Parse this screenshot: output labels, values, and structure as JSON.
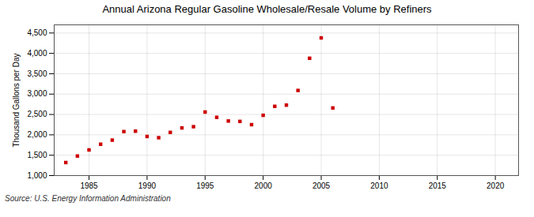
{
  "chart_data": {
    "type": "scatter",
    "title": "Annual Arizona Regular Gasoline Wholesale/Resale Volume by Refiners",
    "ylabel": "Thousand Gallons per Day",
    "source": "Source: U.S. Energy Information Administration",
    "x": [
      1983,
      1984,
      1985,
      1986,
      1987,
      1988,
      1989,
      1990,
      1991,
      1992,
      1993,
      1994,
      1995,
      1996,
      1997,
      1998,
      1999,
      2000,
      2001,
      2002,
      2003,
      2004,
      2005,
      2006
    ],
    "values": [
      1320,
      1480,
      1630,
      1770,
      1870,
      2080,
      2090,
      1960,
      1930,
      2060,
      2170,
      2200,
      2560,
      2430,
      2340,
      2330,
      2250,
      2480,
      2700,
      2730,
      3090,
      3880,
      4380,
      2660
    ],
    "color": "#cc0000",
    "marker": "square",
    "xlim": [
      1982,
      2022
    ],
    "xticks": [
      1985,
      1990,
      1995,
      2000,
      2005,
      2010,
      2015,
      2020
    ],
    "ylim": [
      1000,
      4700
    ],
    "yticks": [
      {
        "value": 1000,
        "label": "1,000"
      },
      {
        "value": 1500,
        "label": "1,500"
      },
      {
        "value": 2000,
        "label": "2,000"
      },
      {
        "value": 2500,
        "label": "2,500"
      },
      {
        "value": 3000,
        "label": "3,000"
      },
      {
        "value": 3500,
        "label": "3,500"
      },
      {
        "value": 4000,
        "label": "4,000"
      },
      {
        "value": 4500,
        "label": "4,500"
      }
    ],
    "grid": true
  }
}
